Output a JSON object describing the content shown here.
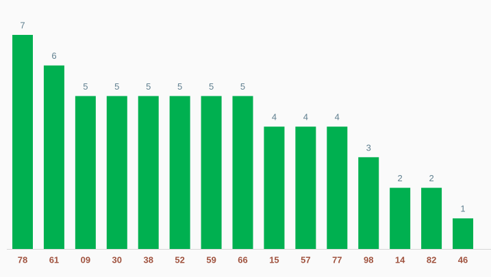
{
  "chart_data": {
    "type": "bar",
    "categories": [
      "78",
      "61",
      "09",
      "30",
      "38",
      "52",
      "59",
      "66",
      "15",
      "57",
      "77",
      "98",
      "14",
      "82",
      "46"
    ],
    "values": [
      7,
      6,
      5,
      5,
      5,
      5,
      5,
      5,
      4,
      4,
      4,
      3,
      2,
      2,
      1
    ],
    "color": "#00b050"
  }
}
